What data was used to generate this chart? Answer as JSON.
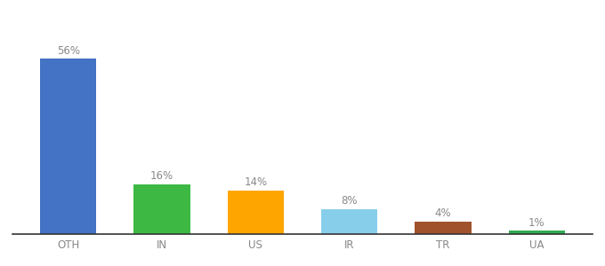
{
  "categories": [
    "OTH",
    "IN",
    "US",
    "IR",
    "TR",
    "UA"
  ],
  "values": [
    56,
    16,
    14,
    8,
    4,
    1
  ],
  "labels": [
    "56%",
    "16%",
    "14%",
    "8%",
    "4%",
    "1%"
  ],
  "bar_colors": [
    "#4472C4",
    "#3CB843",
    "#FFA500",
    "#87CEEB",
    "#A0522D",
    "#2EAA50"
  ],
  "background_color": "#ffffff",
  "label_fontsize": 8.5,
  "tick_fontsize": 8.5,
  "label_color": "#888888",
  "tick_color": "#888888",
  "ylim": [
    0,
    68
  ],
  "bar_width": 0.6,
  "bottom_spine_color": "#333333"
}
